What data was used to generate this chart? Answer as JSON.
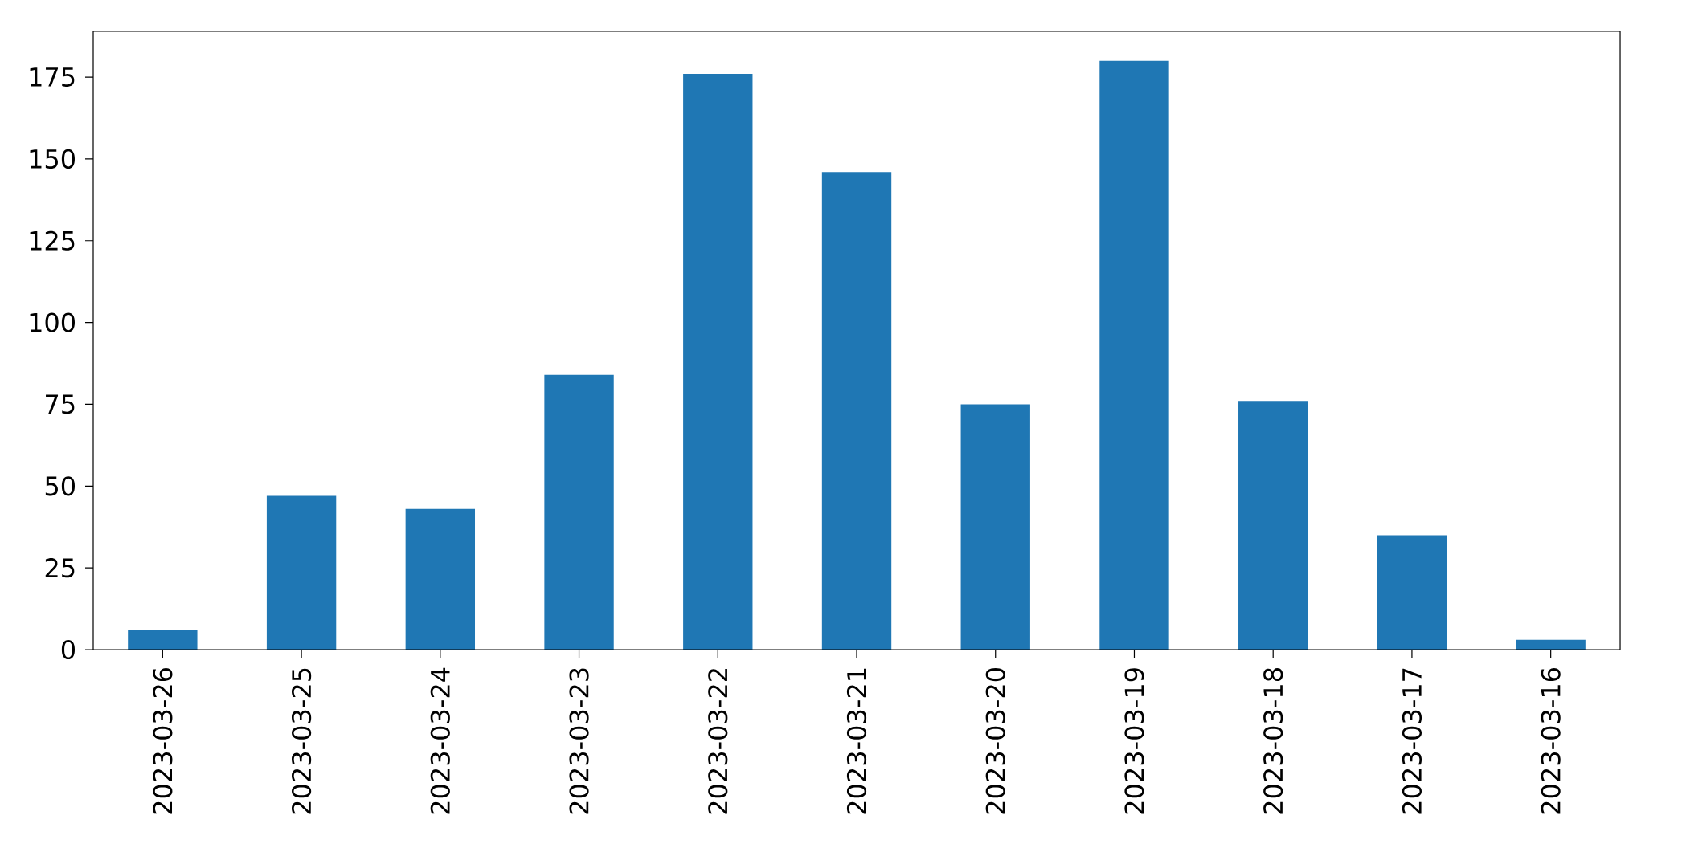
{
  "chart_data": {
    "type": "bar",
    "categories": [
      "2023-03-26",
      "2023-03-25",
      "2023-03-24",
      "2023-03-23",
      "2023-03-22",
      "2023-03-21",
      "2023-03-20",
      "2023-03-19",
      "2023-03-18",
      "2023-03-17",
      "2023-03-16"
    ],
    "values": [
      6,
      47,
      43,
      84,
      176,
      146,
      75,
      180,
      76,
      35,
      3
    ],
    "color": "#1f77b4",
    "ylim": [
      0,
      189
    ],
    "yticks": [
      0,
      25,
      50,
      75,
      100,
      125,
      150,
      175
    ]
  }
}
